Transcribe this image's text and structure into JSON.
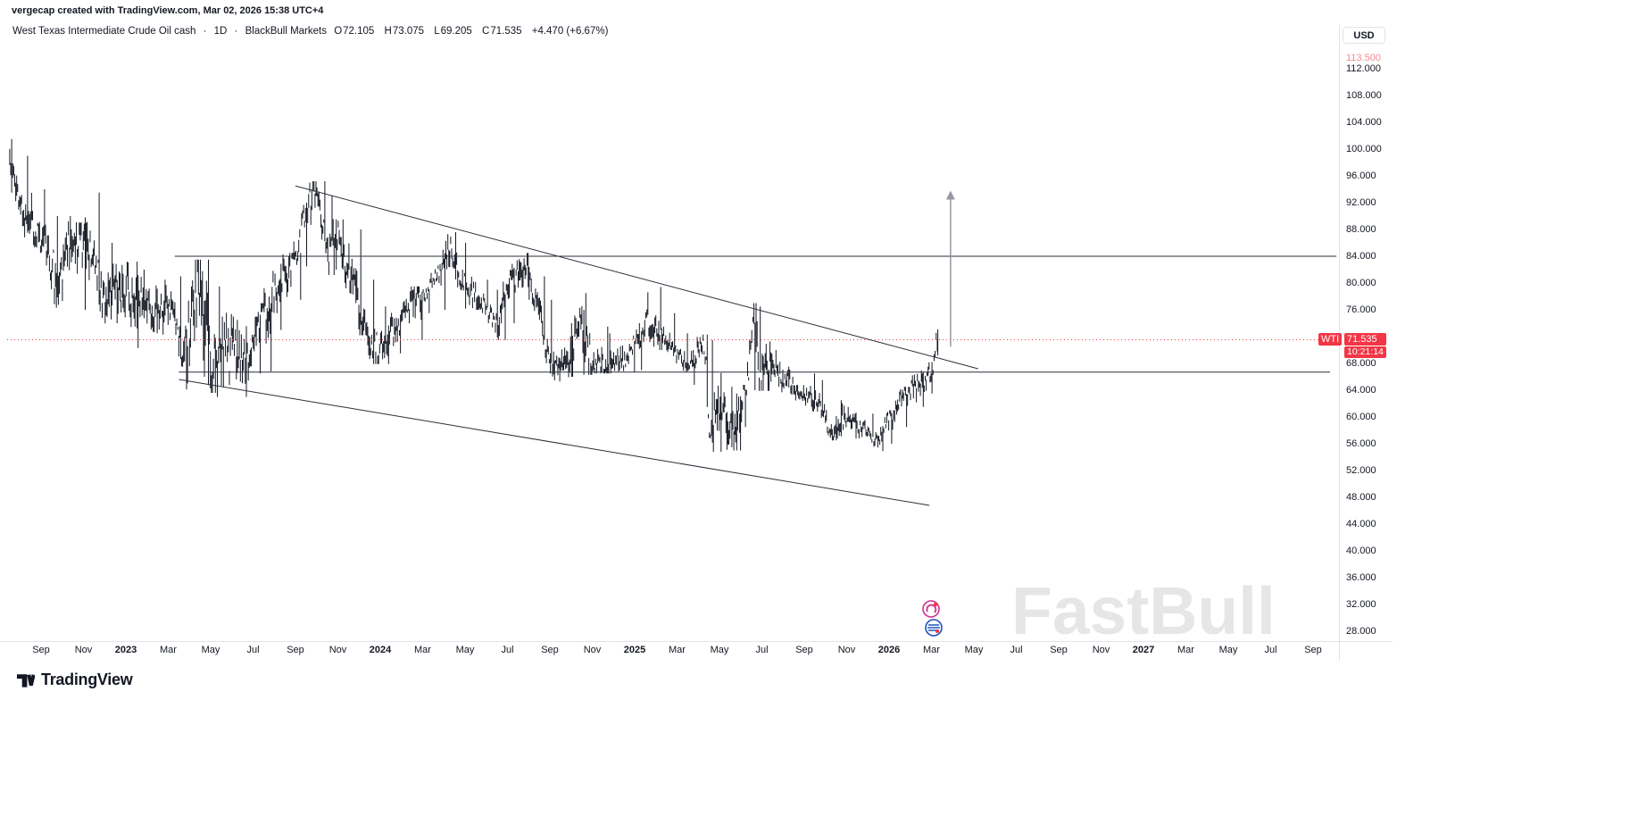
{
  "attribution": "vergecap created with TradingView.com, Mar 02, 2026 15:38 UTC+4",
  "header": {
    "title": "West Texas Intermediate Crude Oil cash",
    "dot": "·",
    "interval": "1D",
    "broker": "BlackBull Markets",
    "open_label": "O",
    "open": "72.105",
    "high_label": "H",
    "high": "73.075",
    "low_label": "L",
    "low": "69.205",
    "close_label": "C",
    "close": "71.535",
    "change": "+4.470 (+6.67%)"
  },
  "price_scale": {
    "currency": "USD",
    "ticks": [
      112,
      108,
      104,
      100,
      96,
      92,
      88,
      84,
      80,
      76,
      68,
      64,
      60,
      56,
      52,
      48,
      44,
      40,
      36,
      32,
      28
    ],
    "alert_price": "113.500",
    "symbol_label": "WTI",
    "price_label": "71.535",
    "countdown": "10:21:14",
    "accent_red": "#F23645"
  },
  "time_scale": {
    "labels": [
      {
        "text": "Sep",
        "m": 0
      },
      {
        "text": "Nov",
        "m": 2
      },
      {
        "text": "2023",
        "m": 4,
        "year": true
      },
      {
        "text": "Mar",
        "m": 6
      },
      {
        "text": "May",
        "m": 8
      },
      {
        "text": "Jul",
        "m": 10
      },
      {
        "text": "Sep",
        "m": 12
      },
      {
        "text": "Nov",
        "m": 14
      },
      {
        "text": "2024",
        "m": 16,
        "year": true
      },
      {
        "text": "Mar",
        "m": 18
      },
      {
        "text": "May",
        "m": 20
      },
      {
        "text": "Jul",
        "m": 22
      },
      {
        "text": "Sep",
        "m": 24
      },
      {
        "text": "Nov",
        "m": 26
      },
      {
        "text": "2025",
        "m": 28,
        "year": true
      },
      {
        "text": "Mar",
        "m": 30
      },
      {
        "text": "May",
        "m": 32
      },
      {
        "text": "Jul",
        "m": 34
      },
      {
        "text": "Sep",
        "m": 36
      },
      {
        "text": "Nov",
        "m": 38
      },
      {
        "text": "2026",
        "m": 40,
        "year": true
      },
      {
        "text": "Mar",
        "m": 42
      },
      {
        "text": "May",
        "m": 44
      },
      {
        "text": "Jul",
        "m": 46
      },
      {
        "text": "Sep",
        "m": 48
      },
      {
        "text": "Nov",
        "m": 50
      },
      {
        "text": "2027",
        "m": 52,
        "year": true
      },
      {
        "text": "Mar",
        "m": 54
      },
      {
        "text": "May",
        "m": 56
      },
      {
        "text": "Jul",
        "m": 58
      },
      {
        "text": "Sep",
        "m": 60
      }
    ]
  },
  "watermark": "FastBull",
  "logo": {
    "text": "TradingView"
  },
  "chart_data": {
    "type": "candlestick",
    "title": "West Texas Intermediate Crude Oil cash",
    "symbol": "WTI",
    "interval": "1D",
    "provider": "BlackBull Markets",
    "currency": "USD",
    "date_range": "Aug 2022 - Mar 2026",
    "ylim": [
      26,
      116
    ],
    "grid": false,
    "bar_color": "#131722",
    "bar_format": "m = months after 2022-09-01; h/l/c = period high/low/close in USD, read from chart",
    "monthly_bars": [
      {
        "m": -1.5,
        "h": 101.5,
        "l": 93.5,
        "c": 97.5
      },
      {
        "m": -0.8,
        "h": 99.0,
        "l": 88.5,
        "c": 91.0
      },
      {
        "m": 0.0,
        "h": 94.0,
        "l": 84.5,
        "c": 87.0
      },
      {
        "m": 0.7,
        "h": 90.0,
        "l": 76.3,
        "c": 79.5
      },
      {
        "m": 1.5,
        "h": 89.0,
        "l": 76.0,
        "c": 86.5
      },
      {
        "m": 2.2,
        "h": 93.5,
        "l": 83.0,
        "c": 85.0
      },
      {
        "m": 3.0,
        "h": 86.0,
        "l": 74.0,
        "c": 77.0
      },
      {
        "m": 3.8,
        "h": 83.2,
        "l": 70.3,
        "c": 79.5
      },
      {
        "m": 4.6,
        "h": 82.0,
        "l": 72.5,
        "c": 78.0
      },
      {
        "m": 5.5,
        "h": 80.5,
        "l": 72.3,
        "c": 76.0
      },
      {
        "m": 6.2,
        "h": 81.0,
        "l": 73.0,
        "c": 76.5
      },
      {
        "m": 6.7,
        "h": 79.0,
        "l": 64.1,
        "c": 69.0
      },
      {
        "m": 7.4,
        "h": 83.5,
        "l": 66.0,
        "c": 79.0
      },
      {
        "m": 8.2,
        "h": 79.5,
        "l": 63.6,
        "c": 68.0
      },
      {
        "m": 9.0,
        "h": 74.5,
        "l": 63.0,
        "c": 70.0
      },
      {
        "m": 9.8,
        "h": 75.0,
        "l": 66.5,
        "c": 69.0
      },
      {
        "m": 10.5,
        "h": 77.0,
        "l": 66.8,
        "c": 75.0
      },
      {
        "m": 11.2,
        "h": 82.5,
        "l": 73.0,
        "c": 80.0
      },
      {
        "m": 11.9,
        "h": 84.5,
        "l": 77.5,
        "c": 83.0
      },
      {
        "m": 12.5,
        "h": 92.0,
        "l": 82.5,
        "c": 91.0
      },
      {
        "m": 12.9,
        "h": 95.2,
        "l": 89.0,
        "c": 93.5
      },
      {
        "m": 13.5,
        "h": 93.0,
        "l": 81.2,
        "c": 85.0
      },
      {
        "m": 13.9,
        "h": 89.5,
        "l": 82.0,
        "c": 88.0
      },
      {
        "m": 14.5,
        "h": 88.0,
        "l": 77.0,
        "c": 81.0
      },
      {
        "m": 15.2,
        "h": 80.5,
        "l": 72.2,
        "c": 74.0
      },
      {
        "m": 15.9,
        "h": 76.5,
        "l": 67.9,
        "c": 69.5
      },
      {
        "m": 16.6,
        "h": 76.0,
        "l": 69.5,
        "c": 72.5
      },
      {
        "m": 17.3,
        "h": 79.0,
        "l": 71.5,
        "c": 76.5
      },
      {
        "m": 18.0,
        "h": 79.5,
        "l": 75.5,
        "c": 78.0
      },
      {
        "m": 18.8,
        "h": 83.0,
        "l": 76.0,
        "c": 81.5
      },
      {
        "m": 19.3,
        "h": 87.6,
        "l": 81.0,
        "c": 85.0
      },
      {
        "m": 20.0,
        "h": 86.0,
        "l": 78.9,
        "c": 79.5
      },
      {
        "m": 20.8,
        "h": 80.5,
        "l": 76.0,
        "c": 77.0
      },
      {
        "m": 21.5,
        "h": 79.0,
        "l": 71.5,
        "c": 74.0
      },
      {
        "m": 22.2,
        "h": 82.0,
        "l": 74.0,
        "c": 81.0
      },
      {
        "m": 22.9,
        "h": 84.5,
        "l": 77.5,
        "c": 83.0
      },
      {
        "m": 23.3,
        "h": 81.0,
        "l": 74.5,
        "c": 77.0
      },
      {
        "m": 24.0,
        "h": 77.5,
        "l": 68.0,
        "c": 69.5
      },
      {
        "m": 24.4,
        "h": 72.0,
        "l": 65.3,
        "c": 67.5
      },
      {
        "m": 25.0,
        "h": 74.0,
        "l": 66.0,
        "c": 68.2
      },
      {
        "m": 25.3,
        "h": 78.5,
        "l": 66.3,
        "c": 73.5
      },
      {
        "m": 26.0,
        "h": 73.5,
        "l": 66.7,
        "c": 68.0
      },
      {
        "m": 26.8,
        "h": 72.5,
        "l": 66.5,
        "c": 68.0
      },
      {
        "m": 27.5,
        "h": 70.5,
        "l": 66.7,
        "c": 68.5
      },
      {
        "m": 28.2,
        "h": 74.0,
        "l": 67.0,
        "c": 72.0
      },
      {
        "m": 28.6,
        "h": 79.4,
        "l": 70.5,
        "c": 75.0
      },
      {
        "m": 29.3,
        "h": 75.5,
        "l": 70.0,
        "c": 72.5
      },
      {
        "m": 30.0,
        "h": 72.5,
        "l": 68.0,
        "c": 69.5
      },
      {
        "m": 30.7,
        "h": 70.0,
        "l": 64.8,
        "c": 68.0
      },
      {
        "m": 31.2,
        "h": 72.3,
        "l": 68.5,
        "c": 71.5
      },
      {
        "m": 31.6,
        "h": 71.5,
        "l": 54.8,
        "c": 57.0
      },
      {
        "m": 32.1,
        "h": 64.5,
        "l": 55.1,
        "c": 62.0
      },
      {
        "m": 32.7,
        "h": 63.5,
        "l": 55.0,
        "c": 57.5
      },
      {
        "m": 33.2,
        "h": 64.8,
        "l": 58.5,
        "c": 64.0
      },
      {
        "m": 33.6,
        "h": 77.0,
        "l": 64.0,
        "c": 73.8
      },
      {
        "m": 33.9,
        "h": 76.5,
        "l": 63.9,
        "c": 66.0
      },
      {
        "m": 34.5,
        "h": 70.0,
        "l": 64.5,
        "c": 66.5
      },
      {
        "m": 35.2,
        "h": 67.5,
        "l": 63.5,
        "c": 65.5
      },
      {
        "m": 35.9,
        "h": 66.5,
        "l": 61.5,
        "c": 63.0
      },
      {
        "m": 36.6,
        "h": 65.5,
        "l": 60.8,
        "c": 62.5
      },
      {
        "m": 37.3,
        "h": 62.5,
        "l": 56.5,
        "c": 58.0
      },
      {
        "m": 38.0,
        "h": 61.5,
        "l": 56.8,
        "c": 60.0
      },
      {
        "m": 38.7,
        "h": 60.5,
        "l": 57.0,
        "c": 58.5
      },
      {
        "m": 39.4,
        "h": 59.5,
        "l": 54.9,
        "c": 56.5
      },
      {
        "m": 40.1,
        "h": 61.0,
        "l": 56.0,
        "c": 60.0
      },
      {
        "m": 40.8,
        "h": 64.5,
        "l": 58.5,
        "c": 63.5
      },
      {
        "m": 41.5,
        "h": 66.5,
        "l": 61.5,
        "c": 65.0
      },
      {
        "m": 42.0,
        "h": 68.2,
        "l": 63.5,
        "c": 67.065
      },
      {
        "m": 42.3,
        "h": 73.075,
        "l": 66.0,
        "c": 71.535
      }
    ],
    "last_bar": {
      "open": 72.105,
      "high": 73.075,
      "low": 69.205,
      "close": 71.535,
      "change": 4.47,
      "change_percent": 6.67
    },
    "current_price": 71.535,
    "drawings": {
      "horizontal_lines": [
        {
          "price": 84.0,
          "m1": 6.3,
          "m2": 61.1
        },
        {
          "price": 66.7,
          "m1": 6.5,
          "m2": 60.8
        }
      ],
      "channel": {
        "upper": {
          "m1": 12.0,
          "p1": 94.5,
          "m2": 44.2,
          "p2": 67.2
        },
        "lower": {
          "m1": 6.5,
          "p1": 65.6,
          "m2": 41.9,
          "p2": 46.8
        }
      },
      "arrow_up": {
        "m": 42.9,
        "from_price": 70.5,
        "to_price": 93.8
      },
      "current_price_line": {
        "price": 71.535,
        "style": "dotted",
        "color": "#F23645"
      }
    },
    "stickers": [
      {
        "x": 1043,
        "y": 682,
        "name": "swirl-sticker",
        "color": "#D02F8E"
      },
      {
        "x": 1046,
        "y": 703,
        "name": "globe-sticker",
        "color": "#1E53BA"
      }
    ]
  }
}
